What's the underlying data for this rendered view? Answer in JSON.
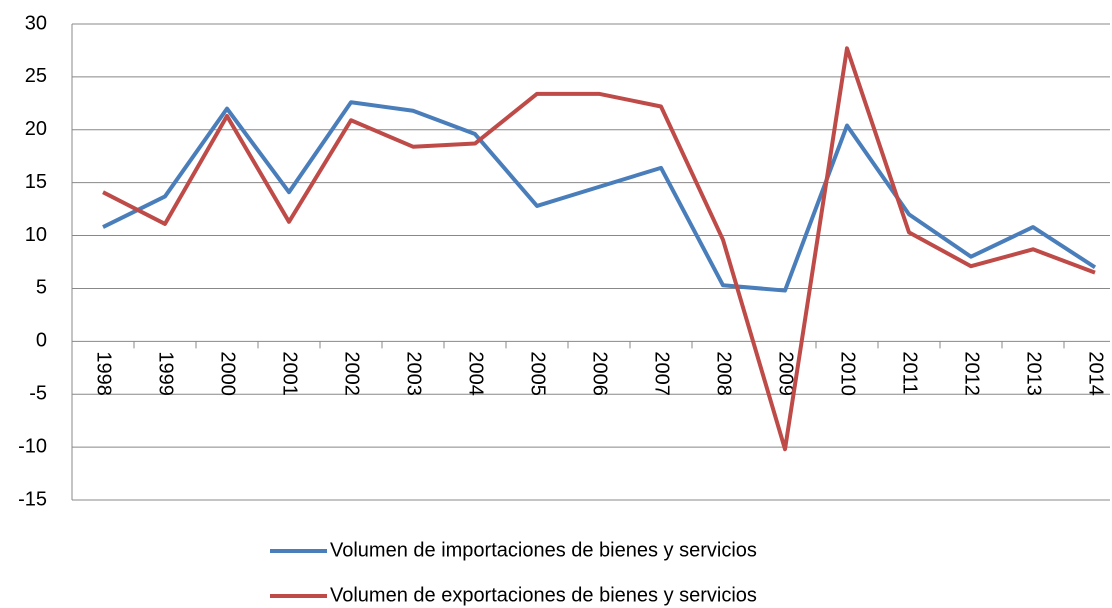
{
  "chart_data": {
    "type": "line",
    "categories": [
      "1998",
      "1999",
      "2000",
      "2001",
      "2002",
      "2003",
      "2004",
      "2005",
      "2006",
      "2007",
      "2008",
      "2009",
      "2010",
      "2011",
      "2012",
      "2013",
      "2014"
    ],
    "series": [
      {
        "name": "Volumen de importaciones de bienes y servicios",
        "color": "#4a7ebb",
        "values": [
          10.8,
          13.7,
          22.0,
          14.1,
          22.6,
          21.8,
          19.6,
          12.8,
          14.6,
          16.4,
          5.3,
          4.8,
          20.4,
          12.0,
          8.0,
          10.8,
          7.0
        ]
      },
      {
        "name": "Volumen de exportaciones de bienes y servicios",
        "color": "#be4b48",
        "values": [
          14.1,
          11.1,
          21.3,
          11.3,
          20.9,
          18.4,
          18.7,
          23.4,
          23.4,
          22.2,
          9.6,
          -10.2,
          27.7,
          10.3,
          7.1,
          8.7,
          6.5
        ]
      }
    ],
    "ylim": [
      -15,
      30
    ],
    "yticks": [
      -15,
      -10,
      -5,
      0,
      5,
      10,
      15,
      20,
      25,
      30
    ],
    "grid": true,
    "legend": "bottom"
  }
}
